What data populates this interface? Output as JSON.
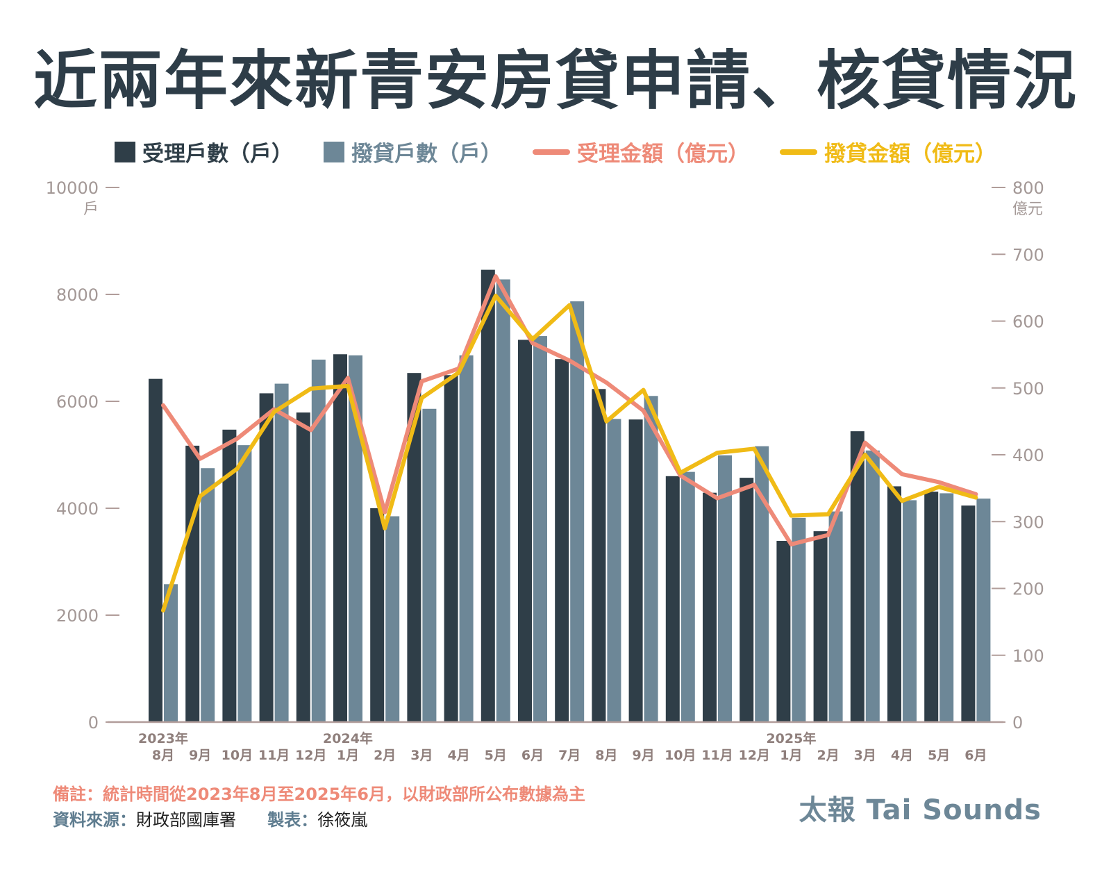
{
  "title": "近兩年來新青安房貸申請、核貸情況",
  "legend": [
    {
      "label": "受理戶數（戶）",
      "kind": "bar",
      "color": "#2f3e48"
    },
    {
      "label": "撥貸戶數（戶）",
      "kind": "bar",
      "color": "#6d8797"
    },
    {
      "label": "受理金額（億元）",
      "kind": "line",
      "color": "#ee8a78"
    },
    {
      "label": "撥貸金額（億元）",
      "kind": "line",
      "color": "#f0bb16"
    }
  ],
  "chart_data": {
    "type": "bar",
    "title": "近兩年來新青安房貸申請、核貸情況",
    "categories": [
      "8月",
      "9月",
      "10月",
      "11月",
      "12月",
      "1月",
      "2月",
      "3月",
      "4月",
      "5月",
      "6月",
      "7月",
      "8月",
      "9月",
      "10月",
      "11月",
      "12月",
      "1月",
      "2月",
      "3月",
      "4月",
      "5月",
      "6月"
    ],
    "year_labels": [
      {
        "index": 0,
        "label": "2023年"
      },
      {
        "index": 5,
        "label": "2024年"
      },
      {
        "index": 17,
        "label": "2025年"
      }
    ],
    "y_left": {
      "unit": "戶",
      "min": 0,
      "max": 10000,
      "ticks": [
        0,
        2000,
        4000,
        6000,
        8000,
        10000
      ]
    },
    "y_right": {
      "unit": "億元",
      "min": 0,
      "max": 800,
      "ticks": [
        0,
        100,
        200,
        300,
        400,
        500,
        600,
        700,
        800
      ]
    },
    "series": [
      {
        "name": "受理戶數（戶）",
        "type": "bar",
        "axis": "left",
        "color": "#2f3e48",
        "values": [
          6420,
          5170,
          5470,
          6150,
          5790,
          6880,
          4000,
          6530,
          6490,
          8460,
          7150,
          6790,
          6230,
          5660,
          4600,
          4290,
          4570,
          3390,
          3570,
          5440,
          4410,
          4310,
          4050
        ]
      },
      {
        "name": "撥貸戶數（戶）",
        "type": "bar",
        "axis": "left",
        "color": "#6d8797",
        "values": [
          2580,
          4750,
          5180,
          6330,
          6780,
          6860,
          3850,
          5860,
          6860,
          8280,
          7220,
          7870,
          5670,
          6100,
          4680,
          4990,
          5160,
          3820,
          3940,
          5080,
          4150,
          4280,
          4180
        ]
      },
      {
        "name": "受理金額（億元）",
        "type": "line",
        "axis": "right",
        "color": "#ee8a78",
        "values": [
          474,
          394,
          424,
          468,
          437,
          515,
          314,
          510,
          529,
          667,
          567,
          541,
          508,
          466,
          369,
          335,
          355,
          266,
          280,
          418,
          371,
          359,
          341
        ]
      },
      {
        "name": "撥貸金額（億元）",
        "type": "line",
        "axis": "right",
        "color": "#f0bb16",
        "values": [
          167,
          338,
          379,
          464,
          499,
          503,
          290,
          485,
          523,
          638,
          573,
          624,
          450,
          497,
          373,
          403,
          409,
          309,
          311,
          400,
          331,
          352,
          336
        ]
      }
    ]
  },
  "notes": {
    "remark": "備註：統計時間從2023年8月至2025年6月，以財政部所公布數據為主",
    "source_key": "資料來源：",
    "source_value": "財政部國庫署",
    "maker_key": "製表：",
    "maker_value": "徐筱嵐"
  },
  "brand": "太報 Tai Sounds"
}
